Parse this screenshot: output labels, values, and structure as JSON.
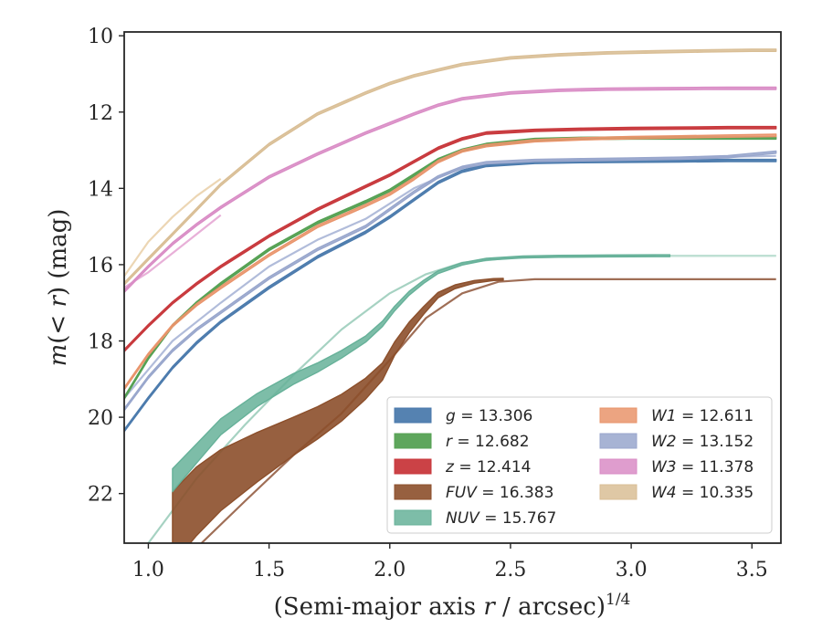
{
  "chart_data": {
    "type": "line",
    "xlabel": "(Semi-major axis r / arcsec)^1/4",
    "xlabel_parts": {
      "prefix": "(Semi-major axis ",
      "var": "r",
      "suffix": " / arcsec)",
      "power": "1/4"
    },
    "ylabel": "m(< r) (mag)",
    "ylabel_parts": {
      "m": "m",
      "middle": "(< ",
      "r": "r",
      "unit": ") (mag)"
    },
    "xlim": [
      0.9,
      3.62
    ],
    "ylim": [
      23.3,
      9.9
    ],
    "y_inverted": true,
    "xticks": [
      1.0,
      1.5,
      2.0,
      2.5,
      3.0,
      3.5
    ],
    "xtick_labels": [
      "1.0",
      "1.5",
      "2.0",
      "2.5",
      "3.0",
      "3.5"
    ],
    "yticks": [
      10,
      12,
      14,
      16,
      18,
      20,
      22
    ],
    "ytick_labels": [
      "10",
      "12",
      "14",
      "16",
      "18",
      "20",
      "22"
    ],
    "grid": false,
    "legend_position": "lower-right",
    "legend_columns": 2,
    "series": [
      {
        "name": "g",
        "legend_label": "= 13.306",
        "color": "#4c7bad",
        "kind": "band",
        "opacity": 0.95,
        "x": [
          0.9,
          1.0,
          1.1,
          1.2,
          1.3,
          1.5,
          1.7,
          1.9,
          2.0,
          2.1,
          2.2,
          2.3,
          2.4,
          2.6,
          2.8,
          3.0,
          3.2,
          3.4,
          3.6
        ],
        "y": [
          20.35,
          19.5,
          18.7,
          18.05,
          17.5,
          16.6,
          15.8,
          15.15,
          14.75,
          14.3,
          13.85,
          13.55,
          13.4,
          13.32,
          13.3,
          13.29,
          13.28,
          13.27,
          13.27
        ],
        "width": [
          0.06,
          0.06,
          0.06,
          0.06,
          0.06,
          0.06,
          0.06,
          0.06,
          0.06,
          0.06,
          0.06,
          0.06,
          0.06,
          0.06,
          0.06,
          0.06,
          0.06,
          0.06,
          0.06
        ]
      },
      {
        "name": "r",
        "legend_label": "= 12.682",
        "color": "#55a153",
        "kind": "band",
        "opacity": 0.95,
        "x": [
          0.9,
          1.0,
          1.1,
          1.2,
          1.3,
          1.5,
          1.7,
          1.9,
          2.0,
          2.1,
          2.2,
          2.3,
          2.4,
          2.6,
          2.8,
          3.0,
          3.2,
          3.4,
          3.6
        ],
        "y": [
          19.5,
          18.45,
          17.6,
          17.0,
          16.5,
          15.6,
          14.9,
          14.35,
          14.05,
          13.65,
          13.25,
          13.0,
          12.85,
          12.72,
          12.69,
          12.68,
          12.68,
          12.68,
          12.68
        ],
        "width": [
          0.06,
          0.06,
          0.06,
          0.06,
          0.06,
          0.06,
          0.06,
          0.06,
          0.06,
          0.06,
          0.06,
          0.06,
          0.06,
          0.06,
          0.06,
          0.06,
          0.06,
          0.06,
          0.06
        ]
      },
      {
        "name": "z",
        "legend_label": "= 12.414",
        "color": "#c8383c",
        "kind": "band",
        "opacity": 0.95,
        "x": [
          0.9,
          1.0,
          1.1,
          1.2,
          1.3,
          1.5,
          1.7,
          1.9,
          2.0,
          2.1,
          2.2,
          2.3,
          2.4,
          2.6,
          2.8,
          3.0,
          3.2,
          3.4,
          3.6
        ],
        "y": [
          18.25,
          17.6,
          17.0,
          16.5,
          16.05,
          15.25,
          14.55,
          13.95,
          13.65,
          13.3,
          12.95,
          12.7,
          12.55,
          12.48,
          12.45,
          12.43,
          12.42,
          12.41,
          12.41
        ],
        "width": [
          0.06,
          0.06,
          0.06,
          0.06,
          0.06,
          0.06,
          0.06,
          0.06,
          0.06,
          0.06,
          0.06,
          0.06,
          0.06,
          0.06,
          0.06,
          0.06,
          0.06,
          0.06,
          0.06
        ]
      },
      {
        "name": "FUV",
        "legend_label": "= 16.383",
        "color": "#8c4f2b",
        "kind": "band",
        "opacity": 0.9,
        "x": [
          1.1,
          1.2,
          1.3,
          1.45,
          1.6,
          1.7,
          1.8,
          1.9,
          1.97,
          2.02,
          2.08,
          2.14,
          2.2,
          2.27,
          2.35,
          2.43,
          2.47
        ],
        "y": [
          22.9,
          22.2,
          21.65,
          21.05,
          20.5,
          20.15,
          19.75,
          19.25,
          18.8,
          18.2,
          17.65,
          17.2,
          16.8,
          16.58,
          16.45,
          16.39,
          16.383
        ],
        "width": [
          1.9,
          1.8,
          1.6,
          1.3,
          1.0,
          0.85,
          0.7,
          0.55,
          0.45,
          0.35,
          0.28,
          0.2,
          0.14,
          0.1,
          0.07,
          0.05,
          0.05
        ]
      },
      {
        "name": "NUV",
        "legend_label": "= 15.767",
        "color": "#66b199",
        "kind": "band",
        "opacity": 0.85,
        "x": [
          1.1,
          1.2,
          1.3,
          1.45,
          1.6,
          1.7,
          1.8,
          1.9,
          1.97,
          2.02,
          2.08,
          2.14,
          2.2,
          2.3,
          2.4,
          2.55,
          2.7,
          2.9,
          3.1,
          3.16
        ],
        "y": [
          21.65,
          20.95,
          20.25,
          19.55,
          19.0,
          18.7,
          18.35,
          17.95,
          17.55,
          17.15,
          16.75,
          16.45,
          16.2,
          15.98,
          15.86,
          15.8,
          15.78,
          15.77,
          15.767,
          15.767
        ],
        "width": [
          0.6,
          0.5,
          0.42,
          0.34,
          0.28,
          0.24,
          0.2,
          0.16,
          0.14,
          0.12,
          0.1,
          0.08,
          0.07,
          0.06,
          0.05,
          0.05,
          0.05,
          0.05,
          0.05,
          0.05
        ]
      },
      {
        "name": "W1",
        "legend_label": "= 12.611",
        "color": "#e9946b",
        "kind": "band",
        "opacity": 0.85,
        "x": [
          0.9,
          1.0,
          1.1,
          1.2,
          1.3,
          1.5,
          1.7,
          1.9,
          2.0,
          2.1,
          2.2,
          2.3,
          2.4,
          2.6,
          2.8,
          3.0,
          3.2,
          3.4,
          3.6
        ],
        "y": [
          19.25,
          18.35,
          17.6,
          17.05,
          16.6,
          15.75,
          15.0,
          14.45,
          14.15,
          13.75,
          13.3,
          13.02,
          12.88,
          12.75,
          12.7,
          12.67,
          12.65,
          12.63,
          12.61
        ],
        "width": [
          0.06,
          0.06,
          0.06,
          0.06,
          0.06,
          0.06,
          0.06,
          0.06,
          0.06,
          0.06,
          0.06,
          0.06,
          0.06,
          0.06,
          0.06,
          0.06,
          0.06,
          0.06,
          0.06
        ]
      },
      {
        "name": "W2",
        "legend_label": "= 13.152",
        "color": "#98a6cc",
        "kind": "band",
        "opacity": 0.85,
        "x": [
          0.9,
          1.0,
          1.1,
          1.2,
          1.3,
          1.5,
          1.7,
          1.9,
          2.0,
          2.1,
          2.2,
          2.3,
          2.4,
          2.6,
          2.8,
          3.0,
          3.2,
          3.4,
          3.6
        ],
        "y": [
          19.8,
          18.95,
          18.25,
          17.7,
          17.25,
          16.35,
          15.6,
          15.0,
          14.55,
          14.1,
          13.7,
          13.45,
          13.33,
          13.27,
          13.25,
          13.23,
          13.21,
          13.17,
          13.05
        ],
        "width": [
          0.06,
          0.06,
          0.06,
          0.06,
          0.06,
          0.06,
          0.06,
          0.06,
          0.06,
          0.06,
          0.06,
          0.06,
          0.06,
          0.06,
          0.06,
          0.06,
          0.06,
          0.06,
          0.06
        ]
      },
      {
        "name": "W3",
        "legend_label": "= 11.378",
        "color": "#d98cc5",
        "kind": "band",
        "opacity": 0.85,
        "x": [
          0.9,
          1.0,
          1.1,
          1.2,
          1.3,
          1.5,
          1.7,
          1.9,
          2.0,
          2.1,
          2.2,
          2.3,
          2.5,
          2.7,
          2.9,
          3.1,
          3.3,
          3.4,
          3.6
        ],
        "y": [
          16.7,
          16.05,
          15.45,
          14.95,
          14.5,
          13.7,
          13.1,
          12.55,
          12.3,
          12.05,
          11.82,
          11.65,
          11.5,
          11.43,
          11.4,
          11.39,
          11.38,
          11.378,
          11.378
        ],
        "width": [
          0.06,
          0.06,
          0.06,
          0.06,
          0.06,
          0.06,
          0.06,
          0.06,
          0.06,
          0.06,
          0.06,
          0.06,
          0.06,
          0.06,
          0.06,
          0.06,
          0.06,
          0.06,
          0.06
        ]
      },
      {
        "name": "W4",
        "legend_label": "= 10.335",
        "color": "#d9be95",
        "kind": "band",
        "opacity": 0.85,
        "x": [
          0.9,
          1.0,
          1.1,
          1.2,
          1.3,
          1.5,
          1.7,
          1.9,
          2.0,
          2.1,
          2.2,
          2.3,
          2.5,
          2.7,
          2.9,
          3.1,
          3.3,
          3.5,
          3.6
        ],
        "y": [
          16.5,
          15.85,
          15.2,
          14.55,
          13.9,
          12.85,
          12.05,
          11.5,
          11.25,
          11.05,
          10.9,
          10.75,
          10.58,
          10.5,
          10.45,
          10.42,
          10.4,
          10.38,
          10.38
        ],
        "width": [
          0.06,
          0.06,
          0.06,
          0.06,
          0.06,
          0.06,
          0.06,
          0.06,
          0.06,
          0.06,
          0.06,
          0.06,
          0.06,
          0.06,
          0.06,
          0.06,
          0.06,
          0.06,
          0.06
        ]
      }
    ],
    "faint_lines": [
      {
        "color": "#9f6e56",
        "x": [
          1.22,
          1.4,
          1.6,
          1.8,
          2.0,
          2.15,
          2.3,
          2.45,
          2.6,
          3.0,
          3.6
        ],
        "y": [
          23.3,
          22.2,
          21.0,
          19.9,
          18.5,
          17.4,
          16.75,
          16.45,
          16.383,
          16.383,
          16.383
        ]
      },
      {
        "color": "#a6d2c2",
        "x": [
          1.0,
          1.2,
          1.4,
          1.6,
          1.8,
          2.0,
          2.15,
          2.3,
          2.5,
          2.8,
          3.1,
          3.6
        ],
        "y": [
          23.3,
          21.6,
          20.2,
          18.9,
          17.7,
          16.75,
          16.25,
          15.95,
          15.82,
          15.78,
          15.77,
          15.767
        ]
      },
      {
        "color": "#b1bcda",
        "x": [
          0.9,
          1.1,
          1.3,
          1.5,
          1.7,
          1.9,
          2.1,
          2.3,
          2.6,
          3.0,
          3.6
        ],
        "y": [
          19.5,
          18.0,
          17.0,
          16.05,
          15.35,
          14.8,
          14.0,
          13.45,
          13.3,
          13.22,
          13.15
        ]
      },
      {
        "color": "#e8b0d8",
        "x": [
          0.9,
          1.0,
          1.1,
          1.2,
          1.3
        ],
        "y": [
          16.6,
          16.2,
          15.7,
          15.2,
          14.7
        ]
      },
      {
        "color": "#ecd6b4",
        "x": [
          0.9,
          1.0,
          1.1,
          1.2,
          1.3
        ],
        "y": [
          16.3,
          15.4,
          14.75,
          14.2,
          13.75
        ]
      },
      {
        "color": "#bfe0d3",
        "x": [
          3.1,
          3.3,
          3.6
        ],
        "y": [
          15.767,
          15.767,
          15.767
        ]
      }
    ]
  }
}
